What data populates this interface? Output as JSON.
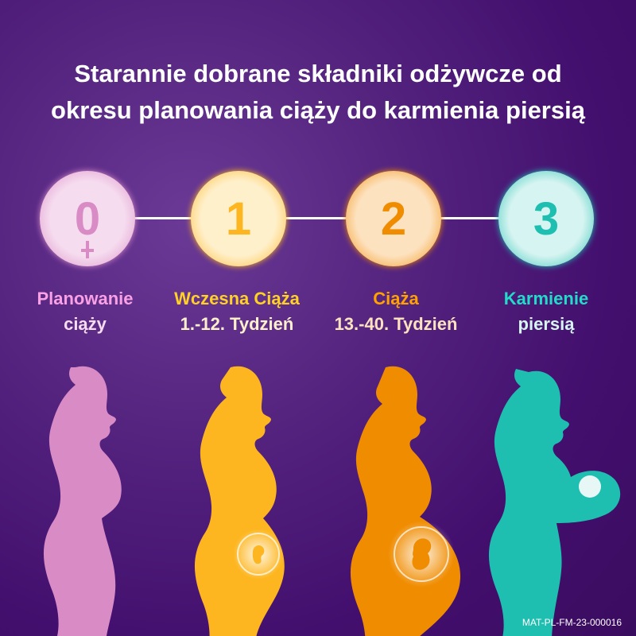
{
  "title": {
    "line1": "Starannie dobrane składniki odżywcze od",
    "line2": "okresu planowania ciąży do karmienia piersią"
  },
  "stages": [
    {
      "number": "0",
      "icon": "female-symbol-icon",
      "label_line1": "Planowanie",
      "label_line2": "ciąży",
      "color": "#d98bc6",
      "fill": "#f6dcef"
    },
    {
      "number": "1",
      "label_line1": "Wczesna Ciąża",
      "label_line2": "1.-12. Tydzień",
      "color": "#fdb61f",
      "fill": "#fff0cc"
    },
    {
      "number": "2",
      "label_line1": "Ciąża",
      "label_line2": "13.-40. Tydzień",
      "color": "#f08c00",
      "fill": "#fde2c0"
    },
    {
      "number": "3",
      "label_line1": "Karmienie",
      "label_line2": "piersią",
      "color": "#1ebfb0",
      "fill": "#d6f4f1"
    }
  ],
  "footer_code": "MAT-PL-FM-23-000016"
}
